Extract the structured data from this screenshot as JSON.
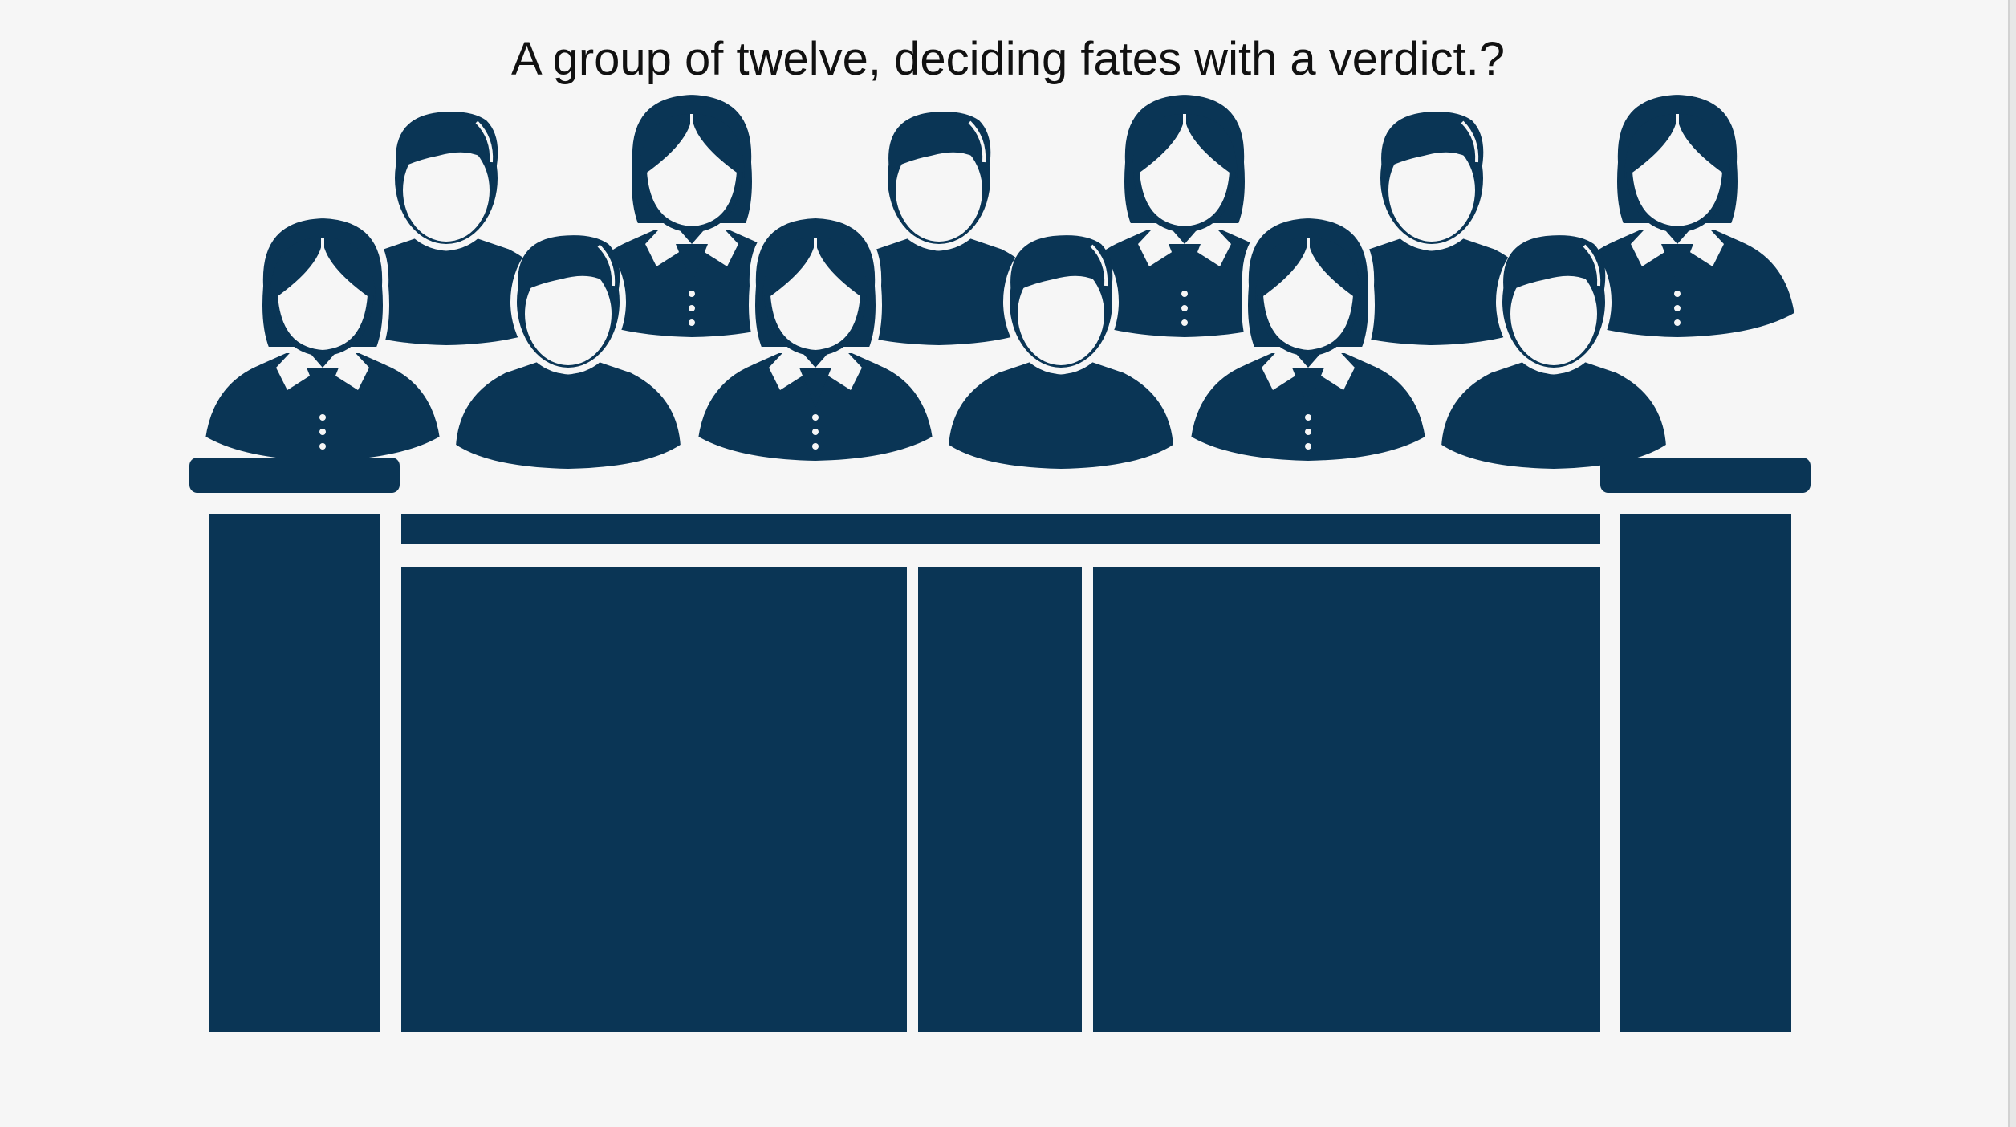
{
  "slide": {
    "title": "A group of twelve, deciding fates with a verdict.?"
  },
  "illustration": {
    "icon": "jury-box-icon",
    "juror_count": 12,
    "color": "#0a3555",
    "background": "#f6f6f6"
  }
}
